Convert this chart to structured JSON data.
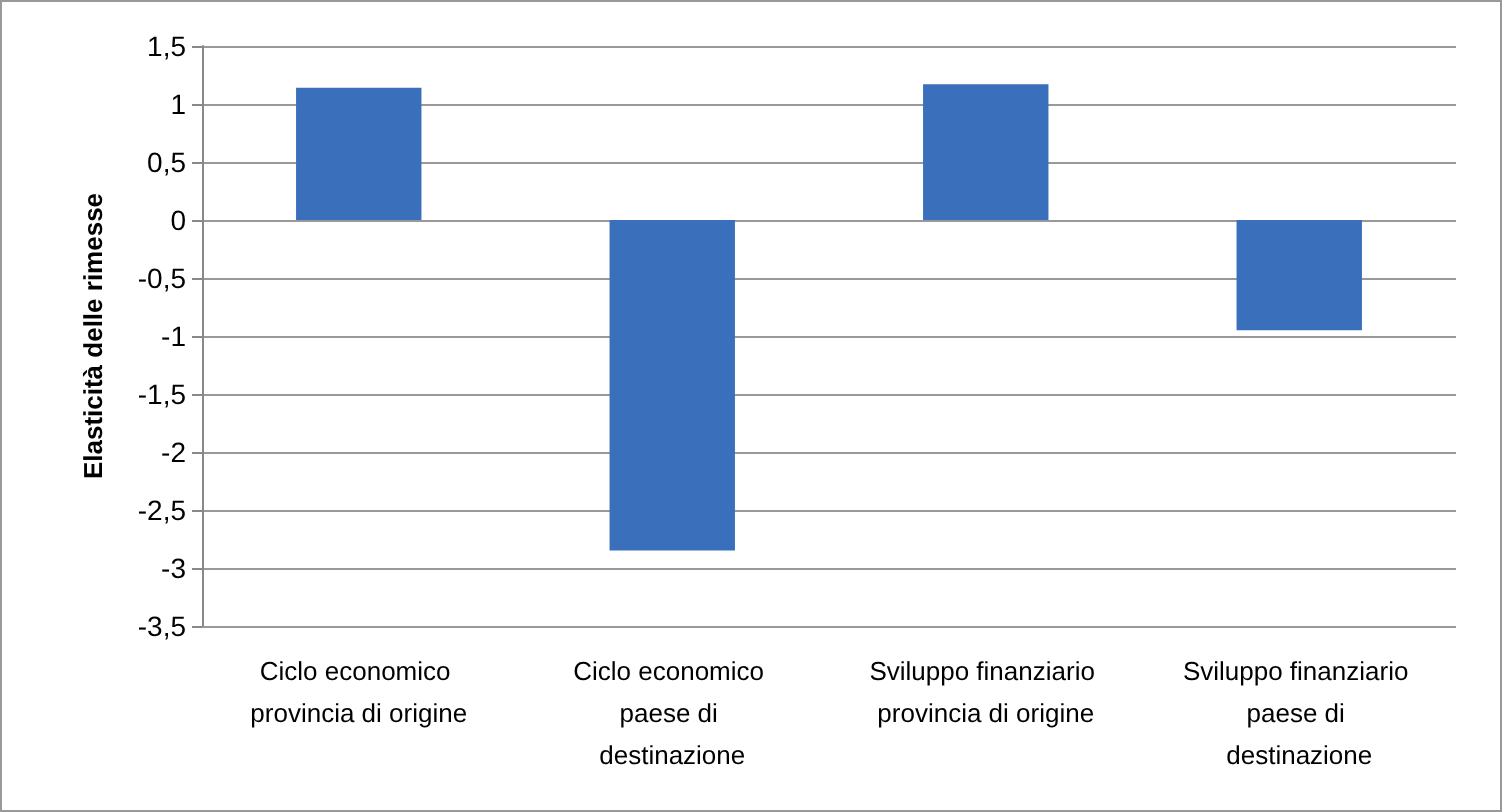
{
  "chart_data": {
    "type": "bar",
    "ylabel": "Elasticità delle rimesse",
    "categories": [
      "Ciclo economico provincia di origine",
      "Ciclo economico paese di destinazione",
      "Sviluppo finanziario provincia di origine",
      "Sviluppo finanziario paese di destinazione"
    ],
    "values": [
      1.14,
      -2.85,
      1.17,
      -0.95
    ],
    "color": "#3a70bb",
    "ylim": [
      -3.5,
      1.5
    ],
    "yticks": [
      {
        "value": -3.5,
        "label": "-3,5"
      },
      {
        "value": -3,
        "label": "-3"
      },
      {
        "value": -2.5,
        "label": "-2,5"
      },
      {
        "value": -2,
        "label": "-2"
      },
      {
        "value": -1.5,
        "label": "-1,5"
      },
      {
        "value": -1,
        "label": "-1"
      },
      {
        "value": -0.5,
        "label": "-0,5"
      },
      {
        "value": 0,
        "label": "0"
      },
      {
        "value": 0.5,
        "label": "0,5"
      },
      {
        "value": 1,
        "label": "1"
      },
      {
        "value": 1.5,
        "label": "1,5"
      }
    ],
    "grid": "y"
  }
}
